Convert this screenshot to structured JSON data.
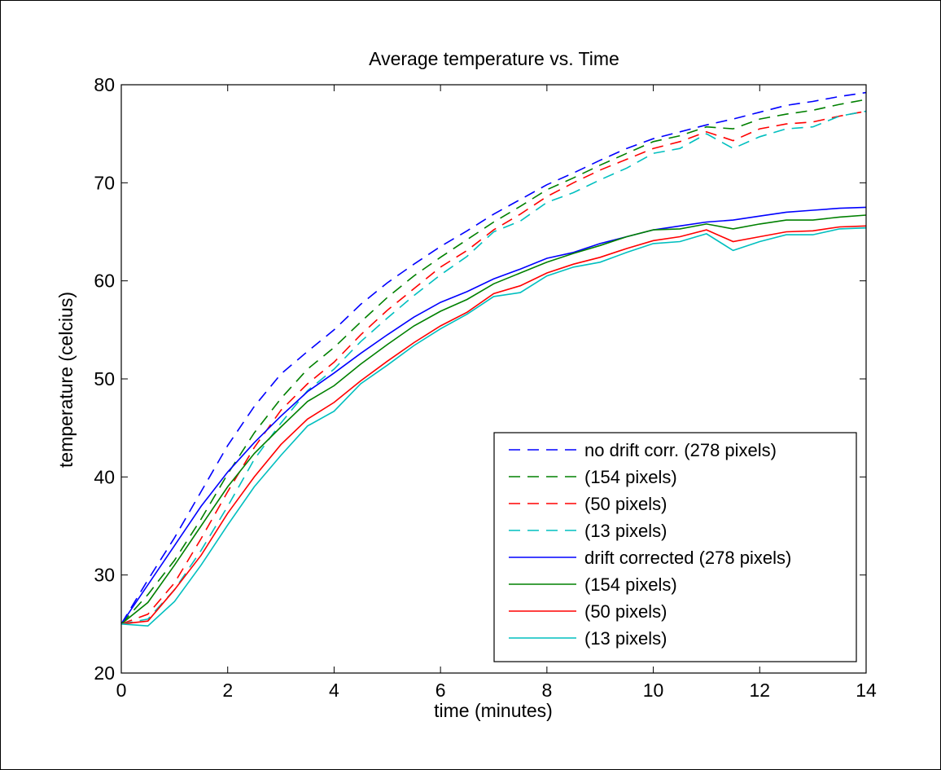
{
  "chart_data": {
    "type": "line",
    "title": "Average temperature vs. Time",
    "xlabel": "time (minutes)",
    "ylabel": "temperature (celcius)",
    "xlim": [
      0,
      14
    ],
    "ylim": [
      20,
      80
    ],
    "xticks": [
      0,
      2,
      4,
      6,
      8,
      10,
      12,
      14
    ],
    "yticks": [
      20,
      30,
      40,
      50,
      60,
      70,
      80
    ],
    "grid": false,
    "legend_position": "bottom-right",
    "x": [
      0,
      0.5,
      1,
      1.5,
      2,
      2.5,
      3,
      3.5,
      4,
      4.5,
      5,
      5.5,
      6,
      6.5,
      7,
      7.5,
      8,
      8.5,
      9,
      9.5,
      10,
      10.5,
      11,
      11.5,
      12,
      12.5,
      13,
      13.5,
      14
    ],
    "series": [
      {
        "name": "no drift corr. (278 pixels)",
        "color": "#0000ff",
        "style": "dashed",
        "values": [
          25,
          29.5,
          33.8,
          38.5,
          43.2,
          47.2,
          50.5,
          52.8,
          55,
          57.6,
          59.8,
          61.7,
          63.5,
          65.1,
          66.8,
          68.3,
          69.8,
          71,
          72.3,
          73.5,
          74.5,
          75.2,
          75.9,
          76.5,
          77.2,
          77.9,
          78.3,
          78.8,
          79.2
        ]
      },
      {
        "name": "(154 pixels)",
        "color": "#008000",
        "style": "dashed",
        "values": [
          25,
          28,
          31.5,
          35.7,
          40.3,
          44.5,
          48,
          51,
          53.2,
          55.8,
          58.3,
          60.5,
          62.4,
          64.2,
          66,
          67.6,
          69.3,
          70.5,
          71.8,
          73,
          74.2,
          74.8,
          75.7,
          75.5,
          76.5,
          77,
          77.4,
          78,
          78.5
        ]
      },
      {
        "name": "(50 pixels)",
        "color": "#ff0000",
        "style": "dashed",
        "values": [
          25,
          26,
          29.2,
          33.7,
          38.5,
          43,
          46.8,
          49.5,
          51.7,
          54.5,
          57,
          59.2,
          61.4,
          63.1,
          65.2,
          66.8,
          68.6,
          70,
          71.3,
          72.4,
          73.5,
          74.2,
          75.2,
          74.3,
          75.5,
          76,
          76.2,
          76.8,
          77.3
        ]
      },
      {
        "name": "(13 pixels)",
        "color": "#00bfbf",
        "style": "dashed",
        "values": [
          25,
          25.5,
          28.5,
          32.5,
          37,
          41.8,
          45.5,
          48.8,
          51,
          53.8,
          56.2,
          58.5,
          60.6,
          62.5,
          65,
          66.1,
          68,
          69,
          70.3,
          71.5,
          73,
          73.5,
          75,
          73.5,
          74.7,
          75.5,
          75.7,
          76.8,
          77.3
        ]
      },
      {
        "name": "drift corrected (278 pixels)",
        "color": "#0000ff",
        "style": "solid",
        "values": [
          25,
          29,
          33,
          37,
          40.5,
          43.5,
          46.2,
          48.7,
          50.6,
          52.6,
          54.5,
          56.3,
          57.8,
          58.9,
          60.2,
          61.2,
          62.3,
          62.9,
          63.8,
          64.5,
          65.2,
          65.6,
          66,
          66.2,
          66.6,
          67,
          67.2,
          67.4,
          67.5
        ]
      },
      {
        "name": "(154 pixels)",
        "color": "#008000",
        "style": "solid",
        "values": [
          25,
          27.2,
          31,
          35,
          39,
          42.4,
          45.1,
          47.7,
          49.3,
          51.5,
          53.5,
          55.4,
          56.9,
          58.1,
          59.7,
          60.8,
          61.9,
          62.8,
          63.6,
          64.5,
          65.2,
          65.3,
          65.8,
          65.3,
          65.8,
          66.2,
          66.2,
          66.5,
          66.7
        ]
      },
      {
        "name": "(50 pixels)",
        "color": "#ff0000",
        "style": "solid",
        "values": [
          25,
          25.3,
          28.5,
          32,
          36.3,
          40,
          43.3,
          45.9,
          47.6,
          49.8,
          51.8,
          53.7,
          55.4,
          56.8,
          58.7,
          59.5,
          60.8,
          61.7,
          62.4,
          63.3,
          64.1,
          64.5,
          65.2,
          64,
          64.5,
          65,
          65.1,
          65.5,
          65.6
        ]
      },
      {
        "name": "(13 pixels)",
        "color": "#00bfbf",
        "style": "solid",
        "values": [
          25,
          24.8,
          27.3,
          31,
          35.1,
          39,
          42.2,
          45.2,
          46.7,
          49.5,
          51.4,
          53.4,
          55.1,
          56.6,
          58.4,
          58.8,
          60.5,
          61.4,
          61.9,
          62.9,
          63.8,
          64,
          64.8,
          63.1,
          64,
          64.7,
          64.7,
          65.3,
          65.4
        ]
      }
    ]
  }
}
